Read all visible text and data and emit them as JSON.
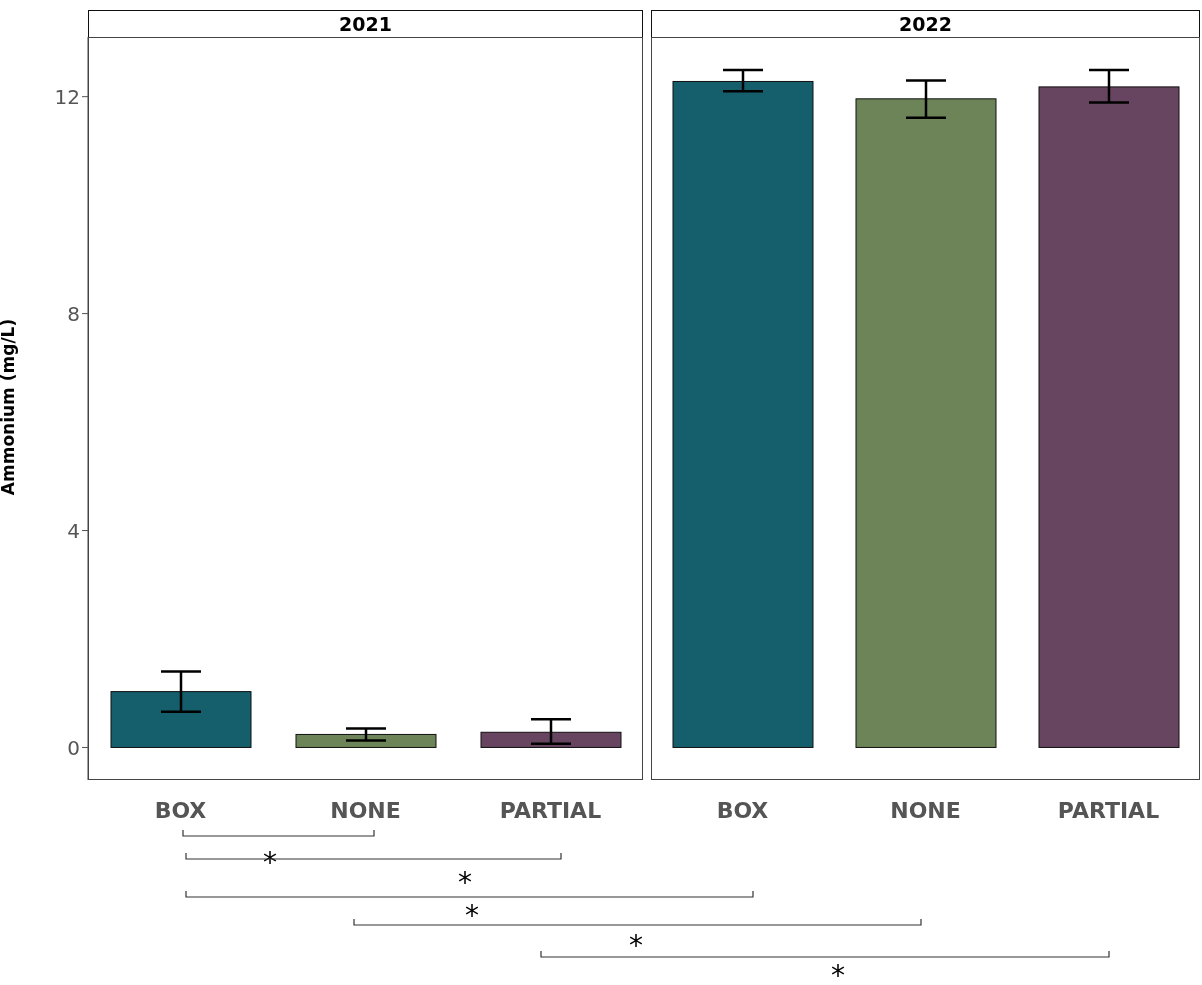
{
  "chart_data": [
    {
      "type": "bar",
      "title": "2021",
      "ylabel": "Ammonium (mg/L)",
      "categories": [
        "BOX",
        "NONE",
        "PARTIAL"
      ],
      "values": [
        1.03,
        0.24,
        0.28
      ],
      "errors": [
        [
          0.66,
          1.4
        ],
        [
          0.13,
          0.35
        ],
        [
          0.07,
          0.52
        ]
      ],
      "colors": [
        "#155e6c",
        "#6c8457",
        "#67445f"
      ],
      "ylim": [
        -0.6,
        13.1
      ],
      "yticks": [
        0,
        4,
        8,
        12
      ],
      "annotations": [
        "*",
        "*",
        "*",
        "*",
        "*"
      ]
    },
    {
      "type": "bar",
      "title": "2022",
      "categories": [
        "BOX",
        "NONE",
        "PARTIAL"
      ],
      "values": [
        12.28,
        11.96,
        12.18
      ],
      "errors": [
        [
          12.1,
          12.49
        ],
        [
          11.61,
          12.3
        ],
        [
          11.89,
          12.49
        ]
      ],
      "colors": [
        "#155e6c",
        "#6c8457",
        "#67445f"
      ],
      "ylim": [
        -0.6,
        13.1
      ],
      "yticks": [
        0,
        4,
        8,
        12
      ],
      "tick_labels": "x"
    }
  ]
}
